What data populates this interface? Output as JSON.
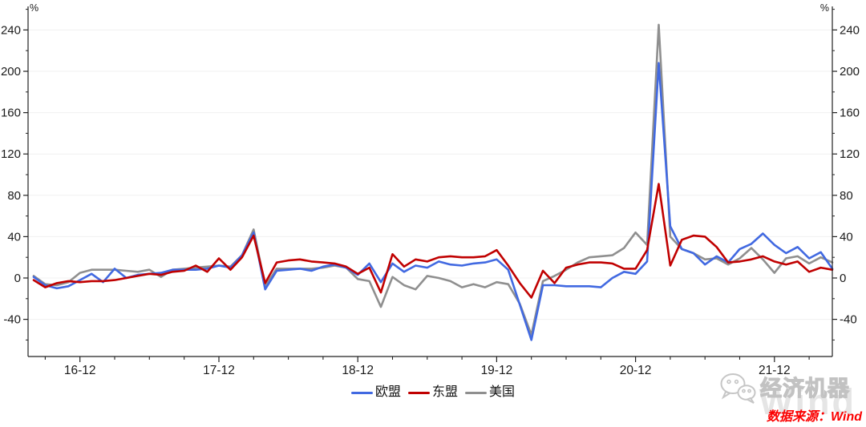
{
  "chart_data": {
    "type": "line",
    "title": "",
    "unit_label_left": "%",
    "unit_label_right": "%",
    "x_frequency": "monthly",
    "x_start": "2016-08",
    "x_end": "2022-05",
    "x": [
      "16-08",
      "16-09",
      "16-10",
      "16-11",
      "16-12",
      "17-01",
      "17-02",
      "17-03",
      "17-04",
      "17-05",
      "17-06",
      "17-07",
      "17-08",
      "17-09",
      "17-10",
      "17-11",
      "17-12",
      "18-01",
      "18-02",
      "18-03",
      "18-04",
      "18-05",
      "18-06",
      "18-07",
      "18-08",
      "18-09",
      "18-10",
      "18-11",
      "18-12",
      "19-01",
      "19-02",
      "19-03",
      "19-04",
      "19-05",
      "19-06",
      "19-07",
      "19-08",
      "19-09",
      "19-10",
      "19-11",
      "19-12",
      "20-01",
      "20-02",
      "20-03",
      "20-04",
      "20-05",
      "20-06",
      "20-07",
      "20-08",
      "20-09",
      "20-10",
      "20-11",
      "20-12",
      "21-01",
      "21-02",
      "21-03",
      "21-04",
      "21-05",
      "21-06",
      "21-07",
      "21-08",
      "21-09",
      "21-10",
      "21-11",
      "21-12",
      "22-01",
      "22-02",
      "22-03",
      "22-04",
      "22-05"
    ],
    "x_tick_labels": [
      "16-12",
      "17-12",
      "18-12",
      "19-12",
      "20-12",
      "21-12"
    ],
    "yticks": [
      -40,
      0,
      40,
      80,
      120,
      160,
      200,
      240
    ],
    "ylim": [
      -75,
      262
    ],
    "grid": "faint horizontal gridlines every 40 units",
    "legend_position": "bottom-center",
    "series": [
      {
        "name": "欧盟",
        "key": "eu",
        "color": "#4169E1",
        "values": [
          1,
          -7,
          -10,
          -8,
          -2,
          4,
          -4,
          9,
          0,
          3,
          4,
          5,
          8,
          8,
          8,
          9,
          12,
          10,
          22,
          44,
          -11,
          7,
          8,
          9,
          7,
          11,
          13,
          10,
          3,
          14,
          -4,
          14,
          6,
          12,
          10,
          16,
          13,
          12,
          14,
          15,
          18,
          8,
          -26,
          -60,
          -7,
          -7,
          -8,
          -8,
          -8,
          -9,
          0,
          6,
          4,
          16,
          208,
          50,
          28,
          24,
          13,
          21,
          15,
          28,
          33,
          43,
          32,
          24,
          30,
          19,
          25,
          9
        ]
      },
      {
        "name": "东盟",
        "key": "asean",
        "color": "#C00000",
        "values": [
          -2,
          -9,
          -5,
          -3,
          -4,
          -3,
          -3,
          -2,
          0,
          2,
          4,
          3,
          6,
          7,
          12,
          6,
          19,
          8,
          20,
          41,
          -5,
          15,
          17,
          18,
          16,
          15,
          14,
          11,
          4,
          10,
          -14,
          23,
          11,
          18,
          16,
          20,
          21,
          20,
          20,
          21,
          27,
          12,
          -5,
          -19,
          7,
          -5,
          10,
          13,
          15,
          15,
          14,
          9,
          9,
          27,
          91,
          12,
          37,
          41,
          40,
          30,
          15,
          16,
          18,
          21,
          16,
          13,
          16,
          6,
          10,
          8
        ]
      },
      {
        "name": "美国",
        "key": "us",
        "color": "#8F8F8F",
        "values": [
          2,
          -6,
          -7,
          -4,
          5,
          8,
          8,
          8,
          7,
          6,
          8,
          1,
          8,
          9,
          10,
          11,
          12,
          11,
          22,
          47,
          -8,
          9,
          9,
          9,
          9,
          10,
          12,
          10,
          -1,
          -3,
          -28,
          1,
          -7,
          -11,
          2,
          0,
          -3,
          -9,
          -6,
          -9,
          -4,
          -6,
          -25,
          -55,
          -3,
          2,
          8,
          15,
          20,
          21,
          22,
          29,
          44,
          32,
          245,
          40,
          28,
          24,
          18,
          19,
          13,
          19,
          29,
          18,
          5,
          19,
          21,
          14,
          20,
          15
        ]
      }
    ]
  },
  "watermark": {
    "brand": "经济机器",
    "background_word": "Wind",
    "icon": "wechat-icon"
  },
  "source": {
    "label": "数据来源：Wind",
    "color": "#FB0000"
  }
}
